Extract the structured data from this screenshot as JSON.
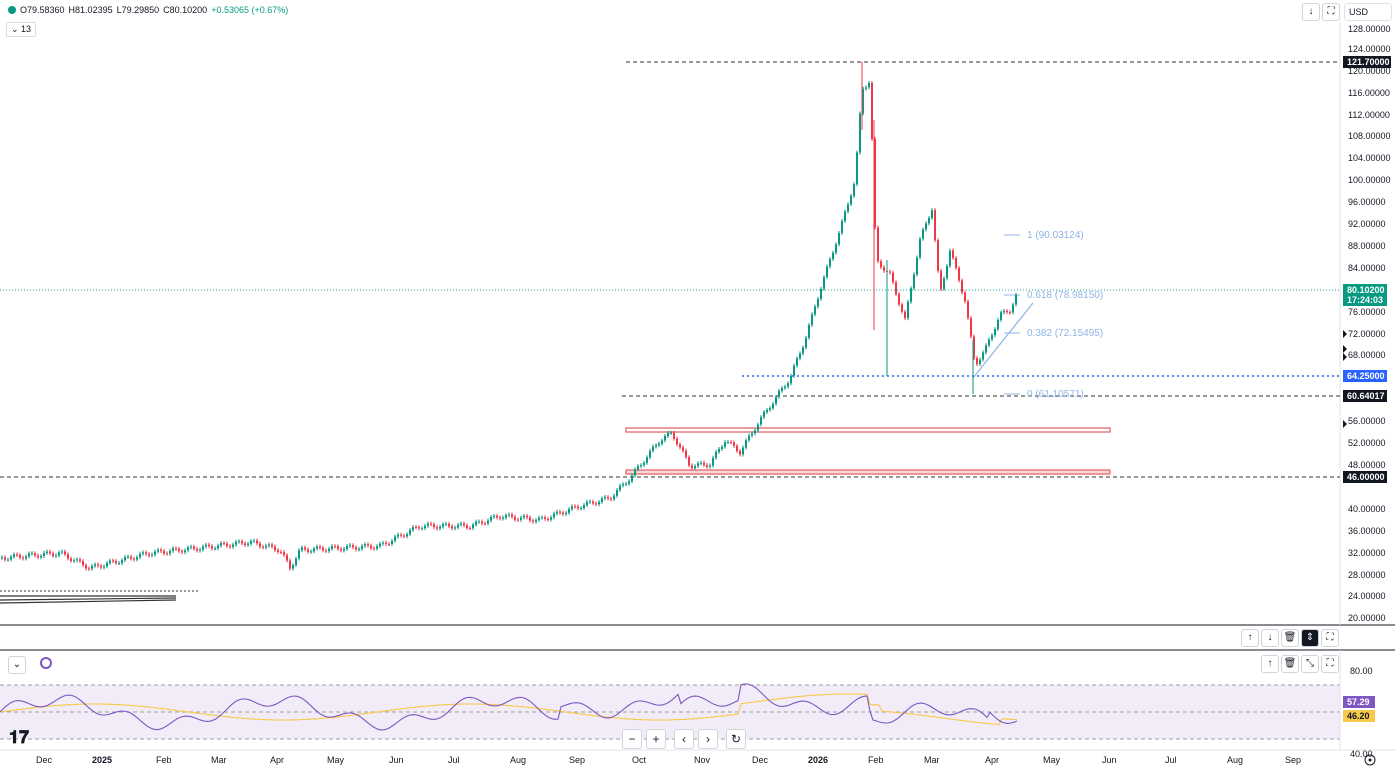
{
  "ohlc": {
    "o": "O79.58360",
    "h": "H81.02395",
    "l": "L79.29850",
    "c": "C80.10200",
    "chg": "+0.53065 (+0.67%)"
  },
  "interval": "13",
  "currency": "USD",
  "price_axis": [
    "128.00000",
    "124.00000",
    "120.00000",
    "116.00000",
    "112.00000",
    "108.00000",
    "104.00000",
    "100.00000",
    "96.00000",
    "92.00000",
    "88.00000",
    "84.00000",
    "76.00000",
    "72.00000",
    "68.00000",
    "56.00000",
    "52.00000",
    "48.00000",
    "40.00000",
    "36.00000",
    "32.00000",
    "28.00000",
    "24.00000",
    "20.00000"
  ],
  "price_tags": {
    "p121": "121.70000",
    "last": "80.10200",
    "countdown": "17:24:03",
    "p64": "64.25000",
    "p60": "60.64017",
    "p46": "46.00000"
  },
  "fib": {
    "f1": "1 (90.03124)",
    "f618": "0.618 (78.98150)",
    "f382": "0.382 (72.15495)",
    "f0": "0 (61.10571)"
  },
  "rsi": {
    "axis_top": "80.00",
    "axis_bot": "40.00",
    "rsi": "57.29",
    "ma": "46.20"
  },
  "time_axis": [
    "Dec",
    "2025",
    "Feb",
    "Mar",
    "Apr",
    "May",
    "Jun",
    "Jul",
    "Aug",
    "Sep",
    "Oct",
    "Nov",
    "Dec",
    "2026",
    "Feb",
    "Mar",
    "Apr",
    "May",
    "Jun",
    "Jul",
    "Aug",
    "Sep"
  ],
  "colors": {
    "up": "#089981",
    "down": "#f23645",
    "rsi": "#7e57c2",
    "rsi_ma": "#f7c948",
    "fib": "#8fb4e6",
    "box": "#e57373"
  },
  "icons": [
    "download-icon",
    "fullscreen-icon",
    "arrow-up-icon",
    "arrow-down-icon",
    "trash-icon",
    "collapse-icon",
    "maximize-icon",
    "chevron-down-icon",
    "settings-icon",
    "zoom-out-icon",
    "zoom-in-icon",
    "scroll-left-icon",
    "scroll-right-icon",
    "reset-icon"
  ]
}
